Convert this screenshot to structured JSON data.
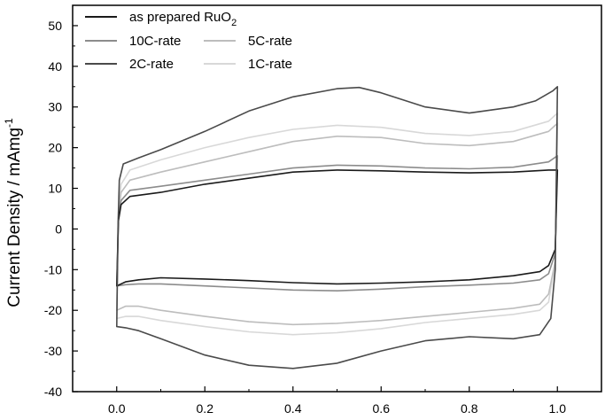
{
  "chart_data": {
    "type": "line",
    "title": "",
    "xlabel": "",
    "ylabel": "Current Density / mAmg-1",
    "ylabel_parts": {
      "main": "Current Density / mAmg",
      "sup": "-1"
    },
    "xlim": [
      -0.1,
      1.1
    ],
    "ylim": [
      -40,
      55
    ],
    "xticks": [
      0.0,
      0.2,
      0.4,
      0.6,
      0.8,
      1.0
    ],
    "xtick_labels": [
      "0.0",
      "0.2",
      "0.4",
      "0.6",
      "0.8",
      "1.0"
    ],
    "yticks": [
      -40,
      -30,
      -20,
      -10,
      0,
      10,
      20,
      30,
      40,
      50
    ],
    "ytick_labels": [
      "-40",
      "-30",
      "-20",
      "-10",
      "0",
      "10",
      "20",
      "30",
      "40",
      "50"
    ],
    "grid": false,
    "legend_position": "top-left",
    "series": [
      {
        "name": "as prepared RuO2",
        "label_parts": {
          "main": "as prepared RuO",
          "sub": "2"
        },
        "color": "#1a1a1a",
        "upper": [
          [
            0.0,
            -14
          ],
          [
            0.004,
            2
          ],
          [
            0.01,
            6
          ],
          [
            0.03,
            8
          ],
          [
            0.1,
            9
          ],
          [
            0.2,
            11
          ],
          [
            0.3,
            12.5
          ],
          [
            0.4,
            14
          ],
          [
            0.5,
            14.5
          ],
          [
            0.6,
            14.3
          ],
          [
            0.7,
            14
          ],
          [
            0.8,
            13.8
          ],
          [
            0.9,
            14
          ],
          [
            0.98,
            14.5
          ],
          [
            1.0,
            14.5
          ]
        ],
        "lower": [
          [
            1.0,
            14.5
          ],
          [
            0.995,
            -5
          ],
          [
            0.98,
            -9
          ],
          [
            0.96,
            -10.5
          ],
          [
            0.9,
            -11.5
          ],
          [
            0.8,
            -12.5
          ],
          [
            0.7,
            -13
          ],
          [
            0.6,
            -13.3
          ],
          [
            0.5,
            -13.5
          ],
          [
            0.4,
            -13.2
          ],
          [
            0.3,
            -12.7
          ],
          [
            0.2,
            -12.3
          ],
          [
            0.1,
            -12
          ],
          [
            0.05,
            -12.5
          ],
          [
            0.02,
            -13
          ],
          [
            0.0,
            -14
          ]
        ]
      },
      {
        "name": "10C-rate",
        "color": "#8c8c8c",
        "upper": [
          [
            0.0,
            -14
          ],
          [
            0.004,
            3
          ],
          [
            0.01,
            7
          ],
          [
            0.03,
            9.5
          ],
          [
            0.1,
            10.5
          ],
          [
            0.2,
            12
          ],
          [
            0.3,
            13.5
          ],
          [
            0.4,
            15
          ],
          [
            0.5,
            15.7
          ],
          [
            0.6,
            15.5
          ],
          [
            0.7,
            15
          ],
          [
            0.8,
            14.8
          ],
          [
            0.9,
            15.2
          ],
          [
            0.98,
            16.5
          ],
          [
            1.0,
            18
          ]
        ],
        "lower": [
          [
            1.0,
            18
          ],
          [
            0.995,
            -6
          ],
          [
            0.98,
            -11
          ],
          [
            0.96,
            -12.5
          ],
          [
            0.9,
            -13.3
          ],
          [
            0.8,
            -13.8
          ],
          [
            0.7,
            -14.2
          ],
          [
            0.6,
            -14.8
          ],
          [
            0.5,
            -15.2
          ],
          [
            0.4,
            -15
          ],
          [
            0.3,
            -14.5
          ],
          [
            0.2,
            -14
          ],
          [
            0.1,
            -13.5
          ],
          [
            0.05,
            -13.5
          ],
          [
            0.02,
            -13.7
          ],
          [
            0.0,
            -14
          ]
        ]
      },
      {
        "name": "5C-rate",
        "color": "#bdbdbd",
        "upper": [
          [
            0.0,
            -20
          ],
          [
            0.004,
            4
          ],
          [
            0.01,
            9
          ],
          [
            0.03,
            12
          ],
          [
            0.1,
            14
          ],
          [
            0.2,
            16.5
          ],
          [
            0.3,
            19
          ],
          [
            0.4,
            21.5
          ],
          [
            0.5,
            22.8
          ],
          [
            0.6,
            22.5
          ],
          [
            0.7,
            21
          ],
          [
            0.8,
            20.5
          ],
          [
            0.9,
            21.5
          ],
          [
            0.98,
            24
          ],
          [
            1.0,
            26
          ]
        ],
        "lower": [
          [
            1.0,
            26
          ],
          [
            0.995,
            -8
          ],
          [
            0.98,
            -16
          ],
          [
            0.96,
            -18.5
          ],
          [
            0.9,
            -19.5
          ],
          [
            0.8,
            -20.5
          ],
          [
            0.7,
            -21.5
          ],
          [
            0.6,
            -22.5
          ],
          [
            0.5,
            -23.2
          ],
          [
            0.4,
            -23.5
          ],
          [
            0.3,
            -22.8
          ],
          [
            0.2,
            -21.5
          ],
          [
            0.1,
            -20
          ],
          [
            0.05,
            -19
          ],
          [
            0.02,
            -19
          ],
          [
            0.0,
            -20
          ]
        ]
      },
      {
        "name": "2C-rate",
        "color": "#4a4a4a",
        "upper": [
          [
            0.0,
            -24
          ],
          [
            0.003,
            0
          ],
          [
            0.006,
            12
          ],
          [
            0.015,
            16
          ],
          [
            0.05,
            17.5
          ],
          [
            0.1,
            19.5
          ],
          [
            0.2,
            24
          ],
          [
            0.3,
            29
          ],
          [
            0.4,
            32.5
          ],
          [
            0.5,
            34.5
          ],
          [
            0.55,
            34.8
          ],
          [
            0.6,
            33.5
          ],
          [
            0.7,
            30
          ],
          [
            0.8,
            28.5
          ],
          [
            0.9,
            30
          ],
          [
            0.95,
            31.5
          ],
          [
            0.99,
            34
          ],
          [
            1.0,
            35
          ]
        ],
        "lower": [
          [
            1.0,
            35
          ],
          [
            0.995,
            -10
          ],
          [
            0.985,
            -22
          ],
          [
            0.96,
            -26
          ],
          [
            0.9,
            -27
          ],
          [
            0.8,
            -26.5
          ],
          [
            0.7,
            -27.5
          ],
          [
            0.6,
            -30
          ],
          [
            0.5,
            -33
          ],
          [
            0.4,
            -34.3
          ],
          [
            0.3,
            -33.5
          ],
          [
            0.2,
            -31
          ],
          [
            0.1,
            -27
          ],
          [
            0.05,
            -25
          ],
          [
            0.02,
            -24.3
          ],
          [
            0.0,
            -24
          ]
        ]
      },
      {
        "name": "1C-rate",
        "color": "#d8d8d8",
        "upper": [
          [
            0.0,
            -22
          ],
          [
            0.004,
            5
          ],
          [
            0.01,
            11
          ],
          [
            0.03,
            14.5
          ],
          [
            0.1,
            17
          ],
          [
            0.2,
            20
          ],
          [
            0.3,
            22.5
          ],
          [
            0.4,
            24.5
          ],
          [
            0.5,
            25.5
          ],
          [
            0.6,
            25
          ],
          [
            0.7,
            23.5
          ],
          [
            0.8,
            23
          ],
          [
            0.9,
            24
          ],
          [
            0.98,
            26.5
          ],
          [
            1.0,
            28.5
          ]
        ],
        "lower": [
          [
            1.0,
            28.5
          ],
          [
            0.995,
            -8
          ],
          [
            0.98,
            -18
          ],
          [
            0.96,
            -20
          ],
          [
            0.9,
            -21
          ],
          [
            0.8,
            -22
          ],
          [
            0.7,
            -23
          ],
          [
            0.6,
            -24.5
          ],
          [
            0.5,
            -25.5
          ],
          [
            0.4,
            -26
          ],
          [
            0.3,
            -25.3
          ],
          [
            0.2,
            -24
          ],
          [
            0.1,
            -22.5
          ],
          [
            0.05,
            -21.5
          ],
          [
            0.02,
            -21.5
          ],
          [
            0.0,
            -22
          ]
        ]
      }
    ],
    "legend_layout": [
      [
        "as prepared RuO2"
      ],
      [
        "10C-rate",
        "5C-rate"
      ],
      [
        "2C-rate",
        "1C-rate"
      ]
    ]
  }
}
